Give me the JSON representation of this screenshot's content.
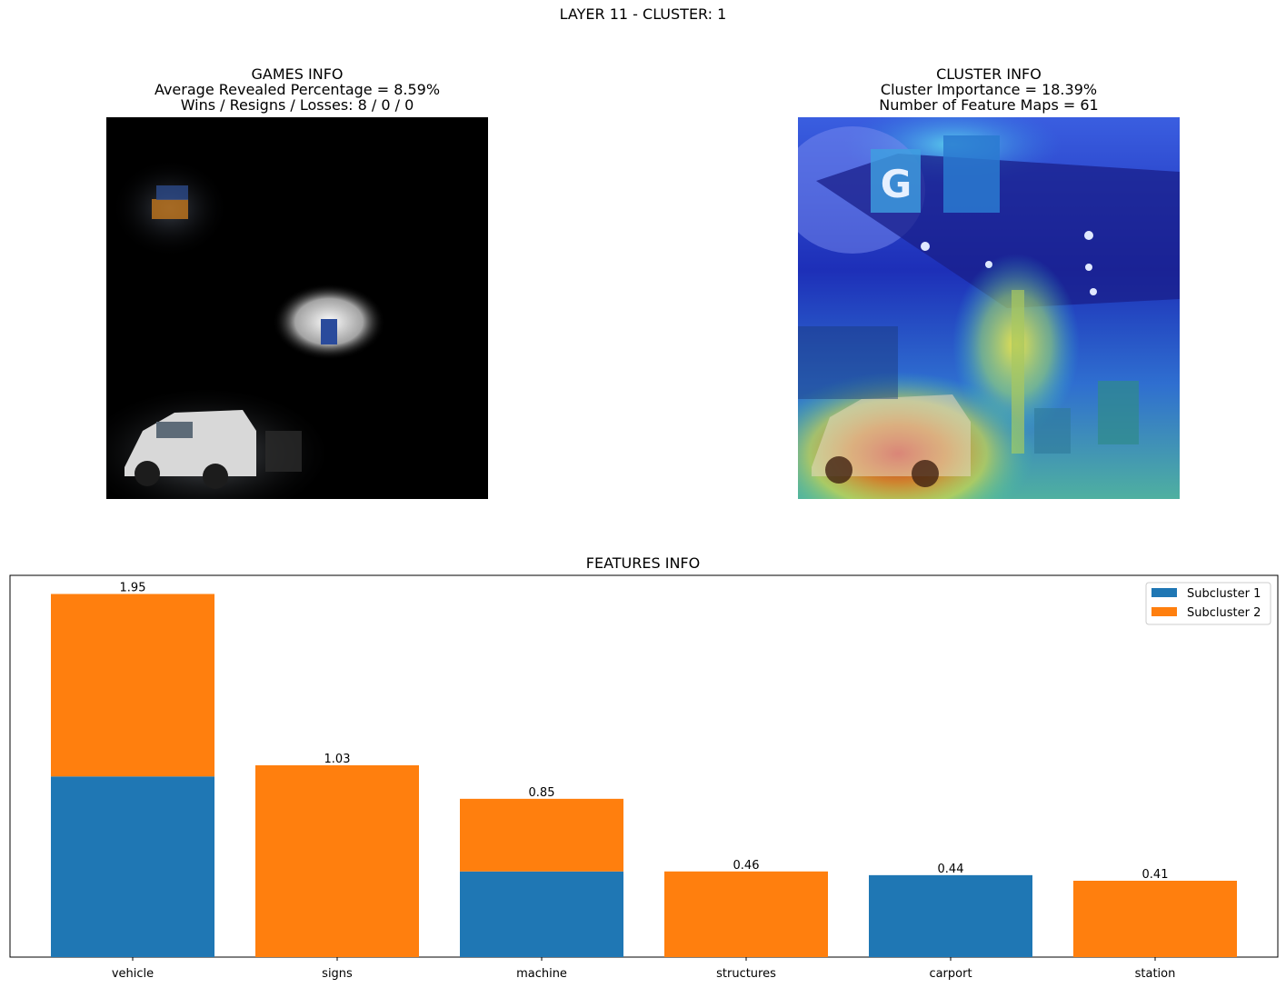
{
  "suptitle": "LAYER 11 - CLUSTER: 1",
  "games_info": {
    "title": "GAMES INFO",
    "line1": "Average Revealed Percentage = 8.59%",
    "line2": "Wins / Resigns / Losses: 8 / 0 / 0"
  },
  "cluster_info": {
    "title": "CLUSTER INFO",
    "line1": "Cluster Importance = 18.39%",
    "line2": "Number of Feature Maps = 61"
  },
  "features_title": "FEATURES INFO",
  "colors": {
    "subcluster1": "#1f77b4",
    "subcluster2": "#ff7f0e"
  },
  "chart_data": {
    "type": "bar",
    "stacked": true,
    "title": "FEATURES INFO",
    "categories": [
      "vehicle",
      "signs",
      "machine",
      "structures",
      "carport",
      "station"
    ],
    "series": [
      {
        "name": "Subcluster 1",
        "values": [
          0.97,
          0,
          0.46,
          0,
          0.44,
          0
        ]
      },
      {
        "name": "Subcluster 2",
        "values": [
          0.98,
          1.03,
          0.39,
          0.46,
          0,
          0.41
        ]
      }
    ],
    "totals": [
      "1.95",
      "1.03",
      "0.85",
      "0.46",
      "0.44",
      "0.41"
    ],
    "ylim": [
      0,
      2.05
    ],
    "y_ticks_visible": false,
    "grid": false,
    "legend": "upper right"
  }
}
